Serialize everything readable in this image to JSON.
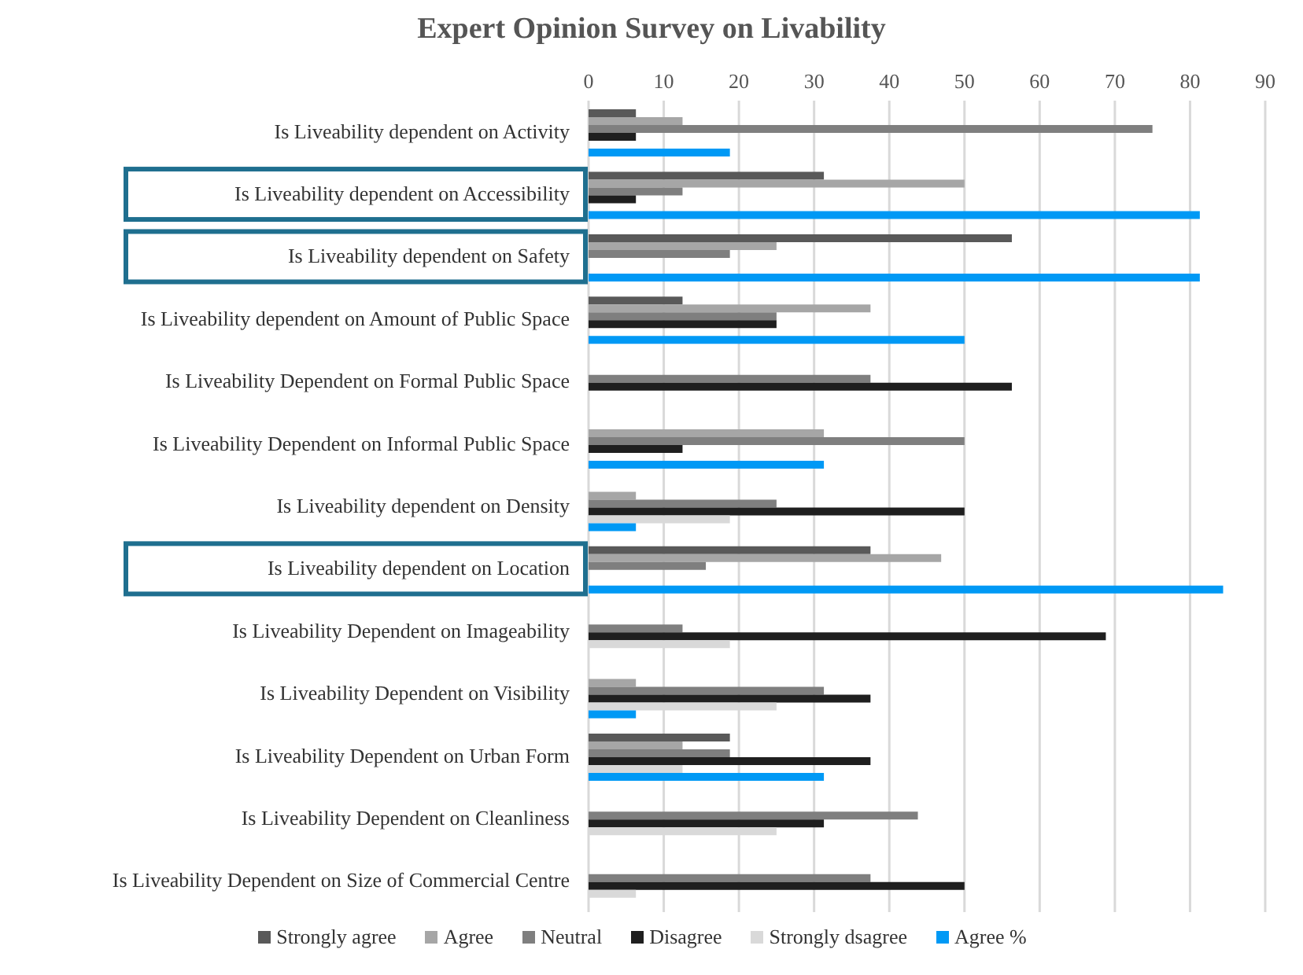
{
  "chart_data": {
    "type": "bar",
    "orientation": "horizontal",
    "title": "Expert Opinion Survey on Livability",
    "categories": [
      "Is Liveability dependent on Activity",
      "Is Liveability dependent on Accessibility",
      "Is Liveability dependent on Safety",
      "Is Liveability dependent on Amount of Public Space",
      "Is Liveability Dependent on Formal Public Space",
      "Is Liveability Dependent on Informal Public Space",
      "Is Liveability dependent on Density",
      "Is Liveability dependent on Location",
      "Is Liveability Dependent on Imageability",
      "Is Liveability Dependent on Visibility",
      "Is Liveability Dependent on Urban Form",
      "Is Liveability Dependent on Cleanliness",
      "Is Liveability Dependent on  Size of Commercial Centre"
    ],
    "series": [
      {
        "name": "Strongly agree",
        "color": "#595959",
        "values": [
          6.3,
          31.3,
          56.3,
          12.5,
          0,
          0,
          0,
          37.5,
          0,
          0,
          18.8,
          0,
          0
        ]
      },
      {
        "name": "Agree",
        "color": "#a6a6a6",
        "values": [
          12.5,
          50,
          25,
          37.5,
          0,
          31.3,
          6.3,
          46.9,
          0,
          6.3,
          12.5,
          0,
          0
        ]
      },
      {
        "name": "Neutral",
        "color": "#7f7f7f",
        "values": [
          75,
          12.5,
          18.8,
          25,
          37.5,
          50,
          25,
          15.6,
          12.5,
          31.3,
          18.8,
          43.8,
          37.5
        ]
      },
      {
        "name": "Disagree",
        "color": "#1f1f1f",
        "values": [
          6.3,
          6.3,
          0,
          25,
          56.3,
          12.5,
          50,
          0,
          68.8,
          37.5,
          37.5,
          31.3,
          50
        ]
      },
      {
        "name": "Strongly dsagree",
        "color": "#d9d9d9",
        "values": [
          0,
          0,
          0,
          0,
          0,
          0,
          18.8,
          0,
          18.8,
          25,
          12.5,
          25,
          6.3
        ]
      },
      {
        "name": "Agree %",
        "color": "#0099f5",
        "values": [
          18.8,
          81.3,
          81.3,
          50,
          0,
          31.3,
          6.3,
          84.4,
          0,
          6.3,
          31.3,
          0,
          0
        ]
      }
    ],
    "xlim": [
      0,
      90
    ],
    "xticks": [
      0,
      10,
      20,
      30,
      40,
      50,
      60,
      70,
      80,
      90
    ],
    "grid": "x",
    "legend": "bottom"
  }
}
